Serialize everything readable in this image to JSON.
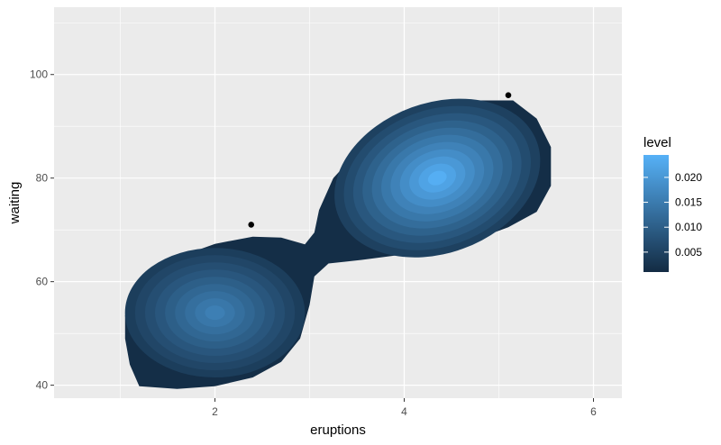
{
  "chart_data": {
    "type": "density2d_filled",
    "xlabel": "eruptions",
    "ylabel": "waiting",
    "xlim": [
      0.3,
      6.3
    ],
    "ylim": [
      37.5,
      113
    ],
    "xticks": [
      2,
      4,
      6
    ],
    "xtick_labels": [
      "2",
      "4",
      "6"
    ],
    "yticks": [
      40,
      60,
      80,
      100
    ],
    "ytick_labels": [
      "40",
      "60",
      "80",
      "100"
    ],
    "grid": true,
    "panel_background": "#ebebeb",
    "modes": [
      {
        "x": 2.0,
        "y": 54
      },
      {
        "x": 4.35,
        "y": 80
      }
    ],
    "points": [
      {
        "x": 2.383,
        "y": 71
      },
      {
        "x": 5.1,
        "y": 96
      }
    ],
    "legend": {
      "title": "level",
      "position": "right",
      "colors": [
        "#132b43",
        "#56b1f7"
      ],
      "range": [
        0.001,
        0.0245
      ],
      "breaks": [
        0.005,
        0.01,
        0.015,
        0.02
      ],
      "break_labels": [
        "0.005",
        "0.010",
        "0.015",
        "0.020"
      ]
    }
  }
}
